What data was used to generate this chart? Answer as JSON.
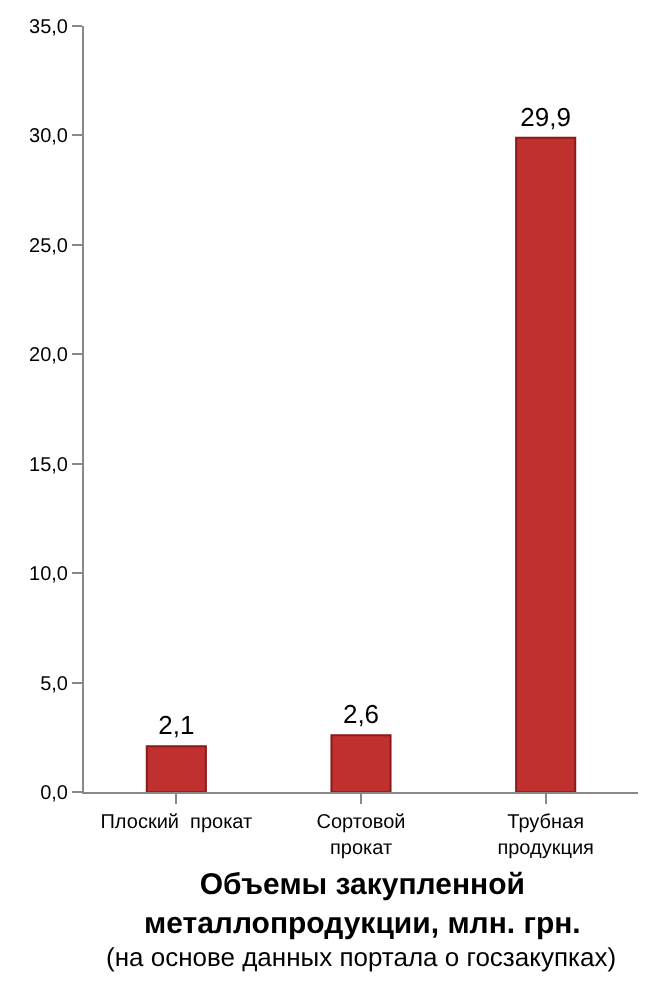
{
  "chart_data": {
    "type": "bar",
    "title": "Объемы закупленной\nметаллопродукции, млн. грн.",
    "categories": [
      "Плоский  прокат",
      "Сортовой\nпрокат",
      "Трубная\nпродукция"
    ],
    "values": [
      2.1,
      2.6,
      29.9
    ],
    "value_labels": [
      "2,1",
      "2,6",
      "29,9"
    ],
    "color": "#c0302f",
    "ylim": [
      0,
      35
    ],
    "yticks": [
      {
        "value": 0,
        "label": "0,0"
      },
      {
        "value": 5,
        "label": "5,0"
      },
      {
        "value": 10,
        "label": "10,0"
      },
      {
        "value": 15,
        "label": "15,0"
      },
      {
        "value": 20,
        "label": "20,0"
      },
      {
        "value": 25,
        "label": "25,0"
      },
      {
        "value": 30,
        "label": "30,0"
      },
      {
        "value": 35,
        "label": "35,0"
      }
    ],
    "annotations": [
      "(на основе данных портала о госзакупках)"
    ],
    "legend": false
  }
}
